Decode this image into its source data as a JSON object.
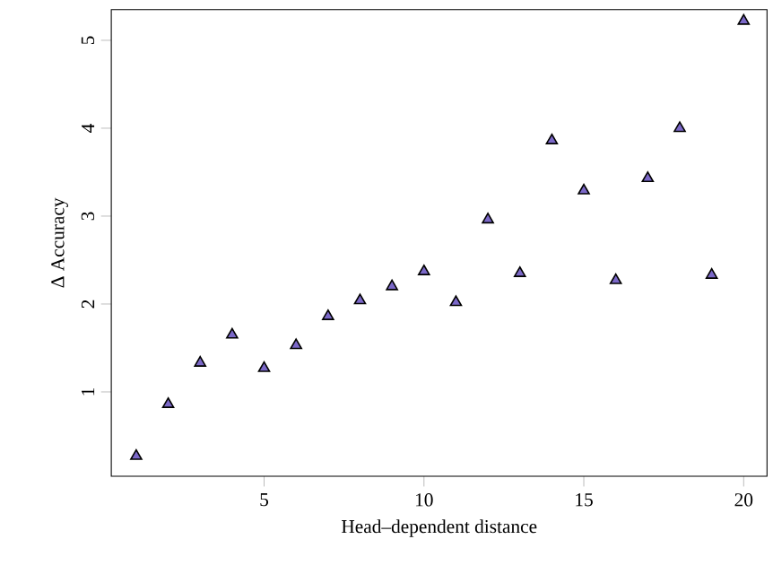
{
  "chart_data": {
    "type": "scatter",
    "xlabel": "Head–dependent distance",
    "ylabel": "Δ Accuracy",
    "x": [
      1,
      2,
      3,
      4,
      5,
      6,
      7,
      8,
      9,
      10,
      11,
      12,
      13,
      14,
      15,
      16,
      17,
      18,
      19,
      20
    ],
    "values": [
      0.27,
      0.86,
      1.33,
      1.65,
      1.27,
      1.53,
      1.86,
      2.04,
      2.2,
      2.37,
      2.02,
      2.96,
      2.35,
      3.86,
      3.29,
      2.27,
      3.43,
      4.0,
      2.33,
      5.22
    ],
    "color": "#7b68c8",
    "marker": "triangle",
    "grid": false,
    "xlim": [
      0.22,
      20.73
    ],
    "ylim": [
      0.04,
      5.35
    ],
    "xticks": [
      5,
      10,
      15,
      20
    ],
    "yticks": [
      1,
      2,
      3,
      4,
      5
    ]
  }
}
